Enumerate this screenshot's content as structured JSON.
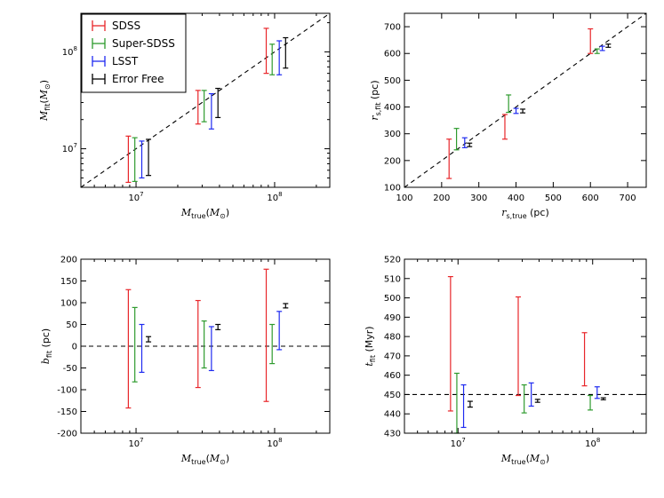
{
  "legend": [
    {
      "name": "SDSS",
      "color": "#e8262a"
    },
    {
      "name": "Super-SDSS",
      "color": "#2e9b2e"
    },
    {
      "name": "LSST",
      "color": "#1f2bf0"
    },
    {
      "name": "Error Free",
      "color": "#000000"
    }
  ],
  "chart_data": [
    {
      "id": "mass",
      "type": "errorbar",
      "title": "",
      "xscale": "log",
      "yscale": "log",
      "xlabel": {
        "base": "M",
        "sub": "true",
        "unit": "M",
        "unit_sub": "⊙"
      },
      "ylabel": {
        "base": "M",
        "sub": "fit",
        "unit": "M",
        "unit_sub": "⊙"
      },
      "xlim": [
        4000000.0,
        250000000.0
      ],
      "ylim": [
        4000000.0,
        250000000.0
      ],
      "xticks": [
        {
          "v": 10000000.0,
          "m": "10",
          "e": "7"
        },
        {
          "v": 100000000.0,
          "m": "10",
          "e": "8"
        }
      ],
      "yticks": [
        {
          "v": 10000000.0,
          "m": "10",
          "e": "7"
        },
        {
          "v": 100000000.0,
          "m": "10",
          "e": "8"
        }
      ],
      "reference": {
        "type": "identity"
      },
      "legend_position": "top-left",
      "series": [
        {
          "name": "SDSS",
          "points": [
            {
              "x": 8800000.0,
              "lo": 4500000.0,
              "hi": 13500000.0
            },
            {
              "x": 28000000.0,
              "lo": 18000000.0,
              "hi": 40000000.0
            },
            {
              "x": 87000000.0,
              "lo": 60000000.0,
              "hi": 175000000.0
            }
          ]
        },
        {
          "name": "Super-SDSS",
          "points": [
            {
              "x": 9800000.0,
              "lo": 4600000.0,
              "hi": 13000000.0
            },
            {
              "x": 31000000.0,
              "lo": 19000000.0,
              "hi": 40000000.0
            },
            {
              "x": 96000000.0,
              "lo": 58000000.0,
              "hi": 120000000.0
            }
          ]
        },
        {
          "name": "LSST",
          "points": [
            {
              "x": 11000000.0,
              "lo": 5000000.0,
              "hi": 12000000.0
            },
            {
              "x": 35000000.0,
              "lo": 16000000.0,
              "hi": 37000000.0
            },
            {
              "x": 108000000.0,
              "lo": 58000000.0,
              "hi": 130000000.0
            }
          ]
        },
        {
          "name": "Error Free",
          "points": [
            {
              "x": 12300000.0,
              "lo": 5300000.0,
              "hi": 12500000.0
            },
            {
              "x": 39000000.0,
              "lo": 21000000.0,
              "hi": 42000000.0
            },
            {
              "x": 120000000.0,
              "lo": 68000000.0,
              "hi": 140000000.0
            }
          ]
        }
      ]
    },
    {
      "id": "radius",
      "type": "errorbar",
      "title": "",
      "xscale": "linear",
      "yscale": "linear",
      "xlabel": {
        "base": "r",
        "sub": "s,true",
        "unit": "(pc)"
      },
      "ylabel": {
        "base": "r",
        "sub": "s,fit",
        "unit": "(pc)"
      },
      "xlim": [
        100,
        750
      ],
      "ylim": [
        100,
        750
      ],
      "xticks": [
        100,
        200,
        300,
        400,
        500,
        600,
        700
      ],
      "yticks": [
        100,
        200,
        300,
        400,
        500,
        600,
        700
      ],
      "reference": {
        "type": "identity"
      },
      "series": [
        {
          "name": "SDSS",
          "points": [
            {
              "x": 220,
              "lo": 133,
              "hi": 280
            },
            {
              "x": 370,
              "lo": 280,
              "hi": 372
            },
            {
              "x": 600,
              "lo": 600,
              "hi": 692
            }
          ]
        },
        {
          "name": "Super-SDSS",
          "points": [
            {
              "x": 240,
              "lo": 240,
              "hi": 320
            },
            {
              "x": 380,
              "lo": 380,
              "hi": 445
            },
            {
              "x": 618,
              "lo": 600,
              "hi": 617
            }
          ]
        },
        {
          "name": "LSST",
          "points": [
            {
              "x": 262,
              "lo": 248,
              "hi": 285
            },
            {
              "x": 400,
              "lo": 376,
              "hi": 395
            },
            {
              "x": 632,
              "lo": 611,
              "hi": 627
            }
          ]
        },
        {
          "name": "Error Free",
          "points": [
            {
              "x": 275,
              "lo": 252,
              "hi": 265
            },
            {
              "x": 418,
              "lo": 378,
              "hi": 392
            },
            {
              "x": 648,
              "lo": 623,
              "hi": 635
            }
          ]
        }
      ]
    },
    {
      "id": "impact",
      "type": "errorbar",
      "title": "",
      "xscale": "log",
      "yscale": "linear",
      "xlabel": {
        "base": "M",
        "sub": "true",
        "unit": "M",
        "unit_sub": "⊙"
      },
      "ylabel": {
        "base": "b",
        "sub": "fit",
        "unit": "(pc)"
      },
      "xlim": [
        4000000.0,
        250000000.0
      ],
      "ylim": [
        -200,
        200
      ],
      "xticks": [
        {
          "v": 10000000.0,
          "m": "10",
          "e": "7"
        },
        {
          "v": 100000000.0,
          "m": "10",
          "e": "8"
        }
      ],
      "yticks": [
        -200,
        -150,
        -100,
        -50,
        0,
        50,
        100,
        150,
        200
      ],
      "reference": {
        "type": "hline",
        "value": 0
      },
      "series": [
        {
          "name": "SDSS",
          "points": [
            {
              "x": 8800000.0,
              "lo": -142,
              "hi": 130
            },
            {
              "x": 28000000.0,
              "lo": -95,
              "hi": 105
            },
            {
              "x": 87000000.0,
              "lo": -127,
              "hi": 177
            }
          ]
        },
        {
          "name": "Super-SDSS",
          "points": [
            {
              "x": 9800000.0,
              "lo": -82,
              "hi": 89
            },
            {
              "x": 31000000.0,
              "lo": -50,
              "hi": 58
            },
            {
              "x": 96000000.0,
              "lo": -40,
              "hi": 50
            }
          ]
        },
        {
          "name": "LSST",
          "points": [
            {
              "x": 11000000.0,
              "lo": -60,
              "hi": 50
            },
            {
              "x": 35000000.0,
              "lo": -56,
              "hi": 45
            },
            {
              "x": 108000000.0,
              "lo": -8,
              "hi": 80
            }
          ]
        },
        {
          "name": "Error Free",
          "points": [
            {
              "x": 12300000.0,
              "lo": 10,
              "hi": 22
            },
            {
              "x": 39000000.0,
              "lo": 38,
              "hi": 50
            },
            {
              "x": 120000000.0,
              "lo": 88,
              "hi": 98
            }
          ]
        }
      ]
    },
    {
      "id": "time",
      "type": "errorbar",
      "title": "",
      "xscale": "log",
      "yscale": "linear",
      "xlabel": {
        "base": "M",
        "sub": "true",
        "unit": "M",
        "unit_sub": "⊙"
      },
      "ylabel": {
        "base": "t",
        "sub": "fit",
        "unit": "(Myr)"
      },
      "xlim": [
        4000000.0,
        250000000.0
      ],
      "ylim": [
        430,
        520
      ],
      "xticks": [
        {
          "v": 10000000.0,
          "m": "10",
          "e": "7"
        },
        {
          "v": 100000000.0,
          "m": "10",
          "e": "8"
        }
      ],
      "yticks": [
        430,
        440,
        450,
        460,
        470,
        480,
        490,
        500,
        510,
        520
      ],
      "reference": {
        "type": "hline",
        "value": 450
      },
      "series": [
        {
          "name": "SDSS",
          "points": [
            {
              "x": 8800000.0,
              "lo": 441.5,
              "hi": 511
            },
            {
              "x": 28000000.0,
              "lo": 449.5,
              "hi": 500.5
            },
            {
              "x": 87000000.0,
              "lo": 454.5,
              "hi": 482
            }
          ]
        },
        {
          "name": "Super-SDSS",
          "points": [
            {
              "x": 9800000.0,
              "lo": 430,
              "hi": 461
            },
            {
              "x": 31000000.0,
              "lo": 440.5,
              "hi": 455
            },
            {
              "x": 96000000.0,
              "lo": 442,
              "hi": 449.5
            }
          ]
        },
        {
          "name": "LSST",
          "points": [
            {
              "x": 11000000.0,
              "lo": 433,
              "hi": 455
            },
            {
              "x": 35000000.0,
              "lo": 444,
              "hi": 456
            },
            {
              "x": 108000000.0,
              "lo": 448,
              "hi": 454
            }
          ]
        },
        {
          "name": "Error Free",
          "points": [
            {
              "x": 12300000.0,
              "lo": 443.5,
              "hi": 446.5
            },
            {
              "x": 39000000.0,
              "lo": 446,
              "hi": 447.5
            },
            {
              "x": 120000000.0,
              "lo": 447.3,
              "hi": 448.3
            }
          ]
        }
      ]
    }
  ]
}
